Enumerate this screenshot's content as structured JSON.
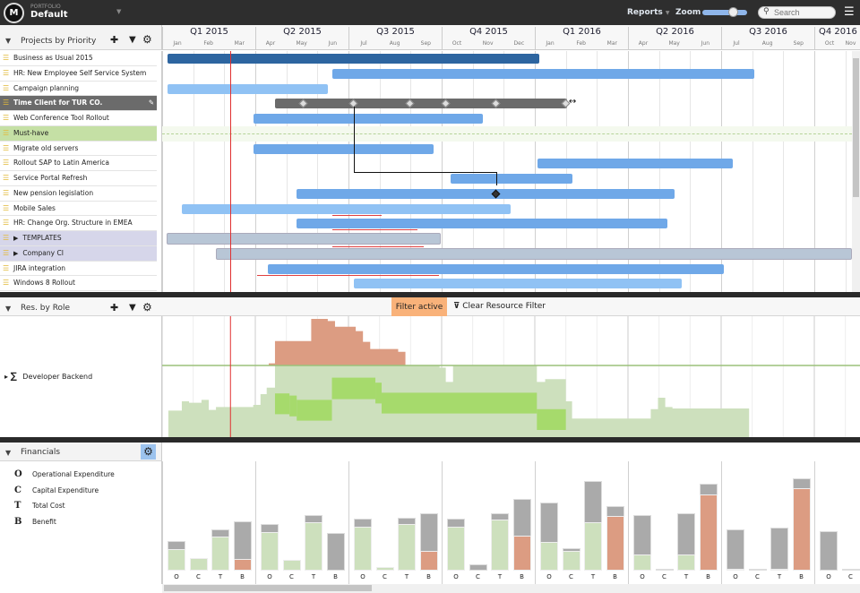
{
  "topbar": {
    "portfolio_label": "PORTFOLIO",
    "portfolio_name": "Default",
    "reports": "Reports",
    "zoom": "Zoom",
    "search_placeholder": "Search",
    "zoom_level": 0.65
  },
  "projects_panel": {
    "title": "Projects by Priority"
  },
  "timeline": {
    "quarters": [
      "Q1 2015",
      "Q2 2015",
      "Q3 2015",
      "Q4 2015",
      "Q1 2016",
      "Q2 2016",
      "Q3 2016",
      "Q4 2016"
    ],
    "months": [
      "Jan",
      "Feb",
      "Mar",
      "Apr",
      "May",
      "Jun",
      "Jul",
      "Aug",
      "Sep",
      "Oct",
      "Nov",
      "Dec",
      "Jan",
      "Feb",
      "Mar",
      "Apr",
      "May",
      "Jun",
      "Jul",
      "Aug",
      "Sep",
      "Oct",
      "Nov"
    ],
    "today": "2015-03-07"
  },
  "colors": {
    "dark_blue": "#2d65a0",
    "blue": "#6fa8e8",
    "light_blue": "#90c2f4",
    "gray": "#6b6b6b",
    "template": "#b8c6d6",
    "overload": "#dc9c82",
    "load": "#cde0bd",
    "selected_load": "#a6da6c",
    "threshold": "#9cc17a",
    "today": "#e03030"
  },
  "projects": [
    {
      "name": "Business as Usual 2015",
      "start": "2015-01-06",
      "end": "2016-01-05",
      "color": "dark_blue"
    },
    {
      "name": "HR: New Employee Self Service System",
      "start": "2015-06-15",
      "end": "2016-08-03",
      "color": "blue"
    },
    {
      "name": "Campaign planning",
      "start": "2015-01-06",
      "end": "2015-06-11",
      "color": "light_blue"
    },
    {
      "name": "Time Client for TUR CO.",
      "start": "2015-04-20",
      "end": "2016-02-02",
      "color": "gray",
      "selected": true,
      "milestones": [
        "2015-05-18",
        "2015-07-06",
        "2015-09-01",
        "2015-10-05",
        "2015-11-24",
        "2016-02-01"
      ]
    },
    {
      "name": "Web Conference Tool Rollout",
      "start": "2015-03-29",
      "end": "2015-11-11",
      "color": "blue"
    },
    {
      "name": "Must-have",
      "group": "must"
    },
    {
      "name": "Migrate old servers",
      "start": "2015-03-29",
      "end": "2015-09-23",
      "color": "blue"
    },
    {
      "name": "Rollout SAP to Latin America",
      "start": "2016-01-04",
      "end": "2016-07-12",
      "color": "blue"
    },
    {
      "name": "Service Portal Refresh",
      "start": "2015-10-10",
      "end": "2016-02-07",
      "color": "blue"
    },
    {
      "name": "New pension legislation",
      "start": "2015-05-11",
      "end": "2016-05-16",
      "color": "blue",
      "milestones": [
        "2015-11-24"
      ]
    },
    {
      "name": "Mobile Sales",
      "start": "2015-01-20",
      "end": "2015-12-08",
      "color": "light_blue",
      "overrun": [
        "2015-06-15",
        "2015-08-03"
      ]
    },
    {
      "name": "HR: Change Org. Structure in EMEA",
      "start": "2015-05-11",
      "end": "2016-05-09",
      "color": "blue",
      "overrun": [
        "2015-06-15",
        "2015-09-08"
      ]
    },
    {
      "name": "TEMPLATES",
      "start": "2015-01-05",
      "end": "2015-09-30",
      "color": "template",
      "group": "folder",
      "overrun": [
        "2015-06-15",
        "2015-09-14"
      ]
    },
    {
      "name": "Company CI",
      "start": "2015-02-23",
      "end": "2016-12-31",
      "color": "template",
      "group": "folder"
    },
    {
      "name": "JIRA integration",
      "start": "2015-04-13",
      "end": "2016-07-04",
      "color": "blue",
      "overrun": [
        "2015-04-03",
        "2015-09-28"
      ]
    },
    {
      "name": "Windows 8 Rollout",
      "start": "2015-07-06",
      "end": "2016-05-23",
      "color": "light_blue"
    },
    {
      "name": "",
      "start": "2016-01-02",
      "end": "2016-08-03",
      "color": "blue"
    }
  ],
  "resource_panel": {
    "title": "Res. by Role",
    "filter_active": "Filter active",
    "clear_filter": "Clear Resource Filter",
    "role": "Developer Backend",
    "load_steps": [
      [
        "2015-01-07",
        37
      ],
      [
        "2015-01-20",
        50
      ],
      [
        "2015-01-27",
        48
      ],
      [
        "2015-02-09",
        52
      ],
      [
        "2015-02-16",
        38
      ],
      [
        "2015-02-23",
        42
      ],
      [
        "2015-03-29",
        45
      ],
      [
        "2015-04-06",
        60
      ],
      [
        "2015-04-12",
        69
      ],
      [
        "2015-04-20",
        100
      ],
      [
        "2015-09-29",
        97
      ],
      [
        "2015-10-05",
        77
      ],
      [
        "2015-10-12",
        100
      ],
      [
        "2016-01-03",
        77
      ],
      [
        "2016-01-11",
        81
      ],
      [
        "2016-02-01",
        50
      ],
      [
        "2016-02-07",
        26
      ],
      [
        "2016-04-23",
        39
      ],
      [
        "2016-04-30",
        55
      ],
      [
        "2016-05-07",
        42
      ],
      [
        "2016-05-14",
        40
      ],
      [
        "2016-07-28",
        0
      ]
    ],
    "overload_steps": [
      [
        "2015-04-14",
        103
      ],
      [
        "2015-04-20",
        134
      ],
      [
        "2015-05-25",
        165
      ],
      [
        "2015-06-11",
        162
      ],
      [
        "2015-06-18",
        154
      ],
      [
        "2015-07-08",
        148
      ],
      [
        "2015-07-15",
        133
      ],
      [
        "2015-07-22",
        123
      ],
      [
        "2015-08-19",
        119
      ],
      [
        "2015-08-26",
        100
      ],
      [
        "2015-09-29",
        100
      ]
    ],
    "selected_band": [
      [
        "2015-04-20",
        "2015-05-04",
        32,
        61
      ],
      [
        "2015-05-04",
        "2015-05-11",
        29,
        58
      ],
      [
        "2015-05-11",
        "2015-06-15",
        23,
        52
      ],
      [
        "2015-06-15",
        "2015-07-27",
        53,
        83
      ],
      [
        "2015-07-27",
        "2015-08-03",
        47,
        76
      ],
      [
        "2015-08-03",
        "2016-01-03",
        33,
        62
      ],
      [
        "2016-01-03",
        "2016-02-01",
        10,
        39
      ]
    ]
  },
  "financials": {
    "title": "Financials",
    "legend": [
      {
        "glyph": "O",
        "label": "Operational Expenditure"
      },
      {
        "glyph": "C",
        "label": "Capital Expenditure"
      },
      {
        "glyph": "T",
        "label": "Total Cost"
      },
      {
        "glyph": "B",
        "label": "Benefit"
      }
    ],
    "bar_labels": [
      "O",
      "C",
      "T",
      "B"
    ],
    "chart_data": {
      "type": "bar",
      "categories": [
        "Q1 2015",
        "Q2 2015",
        "Q3 2015",
        "Q4 2015",
        "Q1 2016",
        "Q2 2016",
        "Q3 2016",
        "Q4 2016"
      ],
      "series": {
        "O": [
          [
            33,
            24
          ],
          [
            52,
            43
          ],
          [
            58,
            49
          ],
          [
            58,
            49
          ],
          [
            76,
            32
          ],
          [
            62,
            18
          ],
          [
            46,
            2
          ],
          [
            44,
            0
          ]
        ],
        "C": [
          [
            14,
            14
          ],
          [
            12,
            12
          ],
          [
            4,
            4
          ],
          [
            7,
            0
          ],
          [
            25,
            22
          ],
          [
            2,
            0
          ],
          [
            2,
            0
          ],
          [
            2,
            0
          ]
        ],
        "T": [
          [
            46,
            38
          ],
          [
            62,
            54
          ],
          [
            59,
            52
          ],
          [
            64,
            57
          ],
          [
            100,
            54
          ],
          [
            64,
            18
          ],
          [
            48,
            2
          ],
          null
        ],
        "B": [
          [
            55,
            13
          ],
          [
            42,
            0
          ],
          [
            64,
            22
          ],
          [
            80,
            39
          ],
          [
            72,
            61
          ],
          [
            97,
            85
          ],
          [
            103,
            92
          ],
          null
        ]
      },
      "note_format": "[total, actual-part]"
    }
  }
}
